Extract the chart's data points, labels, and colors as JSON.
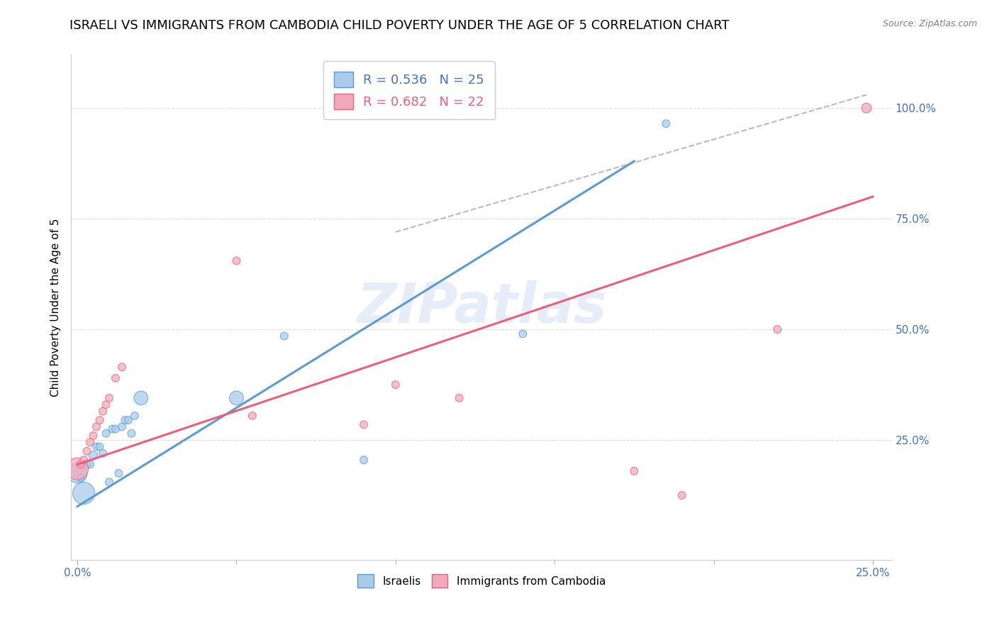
{
  "title": "ISRAELI VS IMMIGRANTS FROM CAMBODIA CHILD POVERTY UNDER THE AGE OF 5 CORRELATION CHART",
  "source": "Source: ZipAtlas.com",
  "ylabel": "Child Poverty Under the Age of 5",
  "ytick_labels": [
    "100.0%",
    "75.0%",
    "50.0%",
    "25.0%"
  ],
  "ytick_values": [
    1.0,
    0.75,
    0.5,
    0.25
  ],
  "xlim": [
    0.0,
    0.25
  ],
  "ylim": [
    0.0,
    1.1
  ],
  "legend_blue_r": "R = 0.536",
  "legend_blue_n": "N = 25",
  "legend_pink_r": "R = 0.682",
  "legend_pink_n": "N = 22",
  "watermark": "ZIPatlas",
  "blue_color": "#A8CCEA",
  "pink_color": "#F2AABB",
  "blue_line_color": "#5B9BD5",
  "pink_line_color": "#E8607A",
  "gray_dashed_color": "#BBBBBB",
  "blue_text_color": "#4472C4",
  "pink_text_color": "#E8607A",
  "title_fontsize": 13,
  "blue_line_x0": 0.0,
  "blue_line_y0": 0.1,
  "blue_line_x1": 0.175,
  "blue_line_y1": 0.88,
  "pink_line_x0": 0.0,
  "pink_line_y0": 0.195,
  "pink_line_x1": 0.25,
  "pink_line_y1": 0.8,
  "gray_line_x0": 0.1,
  "gray_line_y0": 0.72,
  "gray_line_x1": 0.248,
  "gray_line_y1": 1.03,
  "israelis_x": [
    0.0,
    0.001,
    0.002,
    0.003,
    0.004,
    0.005,
    0.006,
    0.007,
    0.008,
    0.009,
    0.01,
    0.011,
    0.012,
    0.013,
    0.014,
    0.015,
    0.016,
    0.017,
    0.018,
    0.02,
    0.05,
    0.065,
    0.09,
    0.14,
    0.185
  ],
  "israelis_y": [
    0.175,
    0.165,
    0.13,
    0.195,
    0.195,
    0.215,
    0.235,
    0.235,
    0.22,
    0.265,
    0.155,
    0.275,
    0.275,
    0.175,
    0.28,
    0.295,
    0.295,
    0.265,
    0.305,
    0.345,
    0.345,
    0.485,
    0.205,
    0.49,
    0.965
  ],
  "israelis_size": [
    400,
    60,
    500,
    60,
    60,
    80,
    60,
    60,
    60,
    60,
    60,
    60,
    60,
    60,
    60,
    60,
    60,
    60,
    60,
    200,
    200,
    60,
    60,
    60,
    60
  ],
  "cambodia_x": [
    0.0,
    0.001,
    0.002,
    0.003,
    0.004,
    0.005,
    0.006,
    0.007,
    0.008,
    0.009,
    0.01,
    0.012,
    0.014,
    0.05,
    0.055,
    0.09,
    0.1,
    0.12,
    0.175,
    0.19,
    0.22,
    0.248
  ],
  "cambodia_y": [
    0.185,
    0.195,
    0.205,
    0.225,
    0.245,
    0.26,
    0.28,
    0.295,
    0.315,
    0.33,
    0.345,
    0.39,
    0.415,
    0.655,
    0.305,
    0.285,
    0.375,
    0.345,
    0.18,
    0.125,
    0.5,
    1.0
  ],
  "cambodia_size": [
    500,
    60,
    60,
    60,
    60,
    60,
    60,
    60,
    60,
    60,
    60,
    60,
    60,
    60,
    60,
    60,
    60,
    60,
    60,
    60,
    60,
    100
  ]
}
